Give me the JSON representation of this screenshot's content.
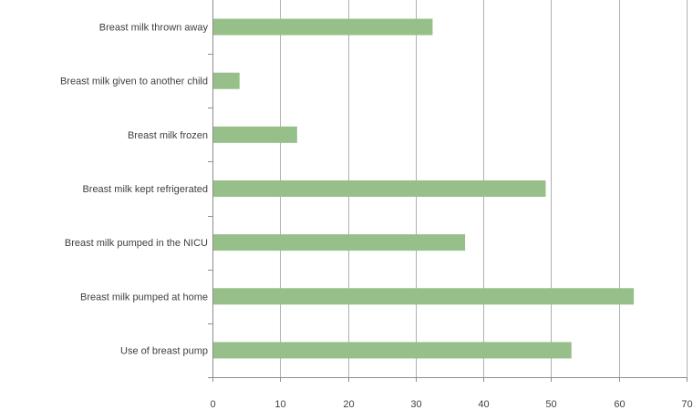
{
  "chart_data": {
    "type": "bar",
    "orientation": "horizontal",
    "categories": [
      "Breast milk thrown away",
      "Breast milk given to another child",
      "Breast milk frozen",
      "Breast milk kept refrigerated",
      "Breast milk pumped in the NICU",
      "Breast milk pumped at home",
      "Use of breast pump"
    ],
    "values": [
      32.5,
      4,
      12.5,
      49.2,
      37.3,
      62.2,
      53
    ],
    "xlim": [
      0,
      70
    ],
    "xticks": [
      "0",
      "10",
      "20",
      "30",
      "40",
      "50",
      "60",
      "70"
    ],
    "grid": true,
    "bar_color": "#97bf8a"
  }
}
